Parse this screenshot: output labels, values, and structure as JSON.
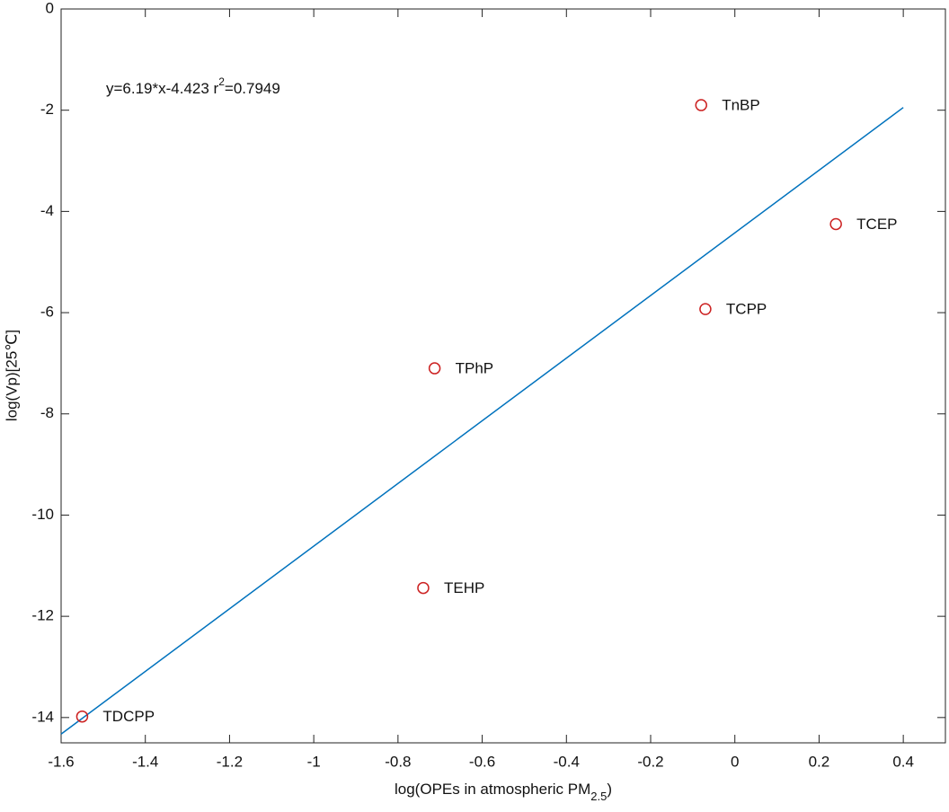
{
  "chart_data": {
    "type": "scatter",
    "x_label": [
      "log(OPEs in atmospheric PM",
      "2.5",
      ")"
    ],
    "y_label": "log(Vp)[25℃]",
    "annotation": [
      "y=6.19*x-4.423 r",
      "2",
      "=0.7949"
    ],
    "xlim": [
      -1.6,
      0.5
    ],
    "ylim": [
      -14.5,
      0
    ],
    "xticks": [
      -1.6,
      -1.4,
      -1.2,
      -1,
      -0.8,
      -0.6,
      -0.4,
      -0.2,
      0,
      0.2,
      0.4
    ],
    "yticks": [
      0,
      -2,
      -4,
      -6,
      -8,
      -10,
      -12,
      -14
    ],
    "grid": false,
    "series": [
      {
        "color": "#cc2222",
        "point_labels": [
          "TnBP",
          "TCEP",
          "TCPP",
          "TPhP",
          "TEHP",
          "TDCPP"
        ],
        "x": [
          -0.08,
          0.24,
          -0.07,
          -0.713,
          -0.74,
          -1.55
        ],
        "values": [
          -1.9,
          -4.25,
          -5.93,
          -7.1,
          -11.44,
          -13.98
        ]
      }
    ],
    "fit": {
      "color": "#0072bd",
      "slope": 6.19,
      "intercept": -4.423,
      "x_range": [
        -1.6,
        0.4
      ]
    }
  }
}
